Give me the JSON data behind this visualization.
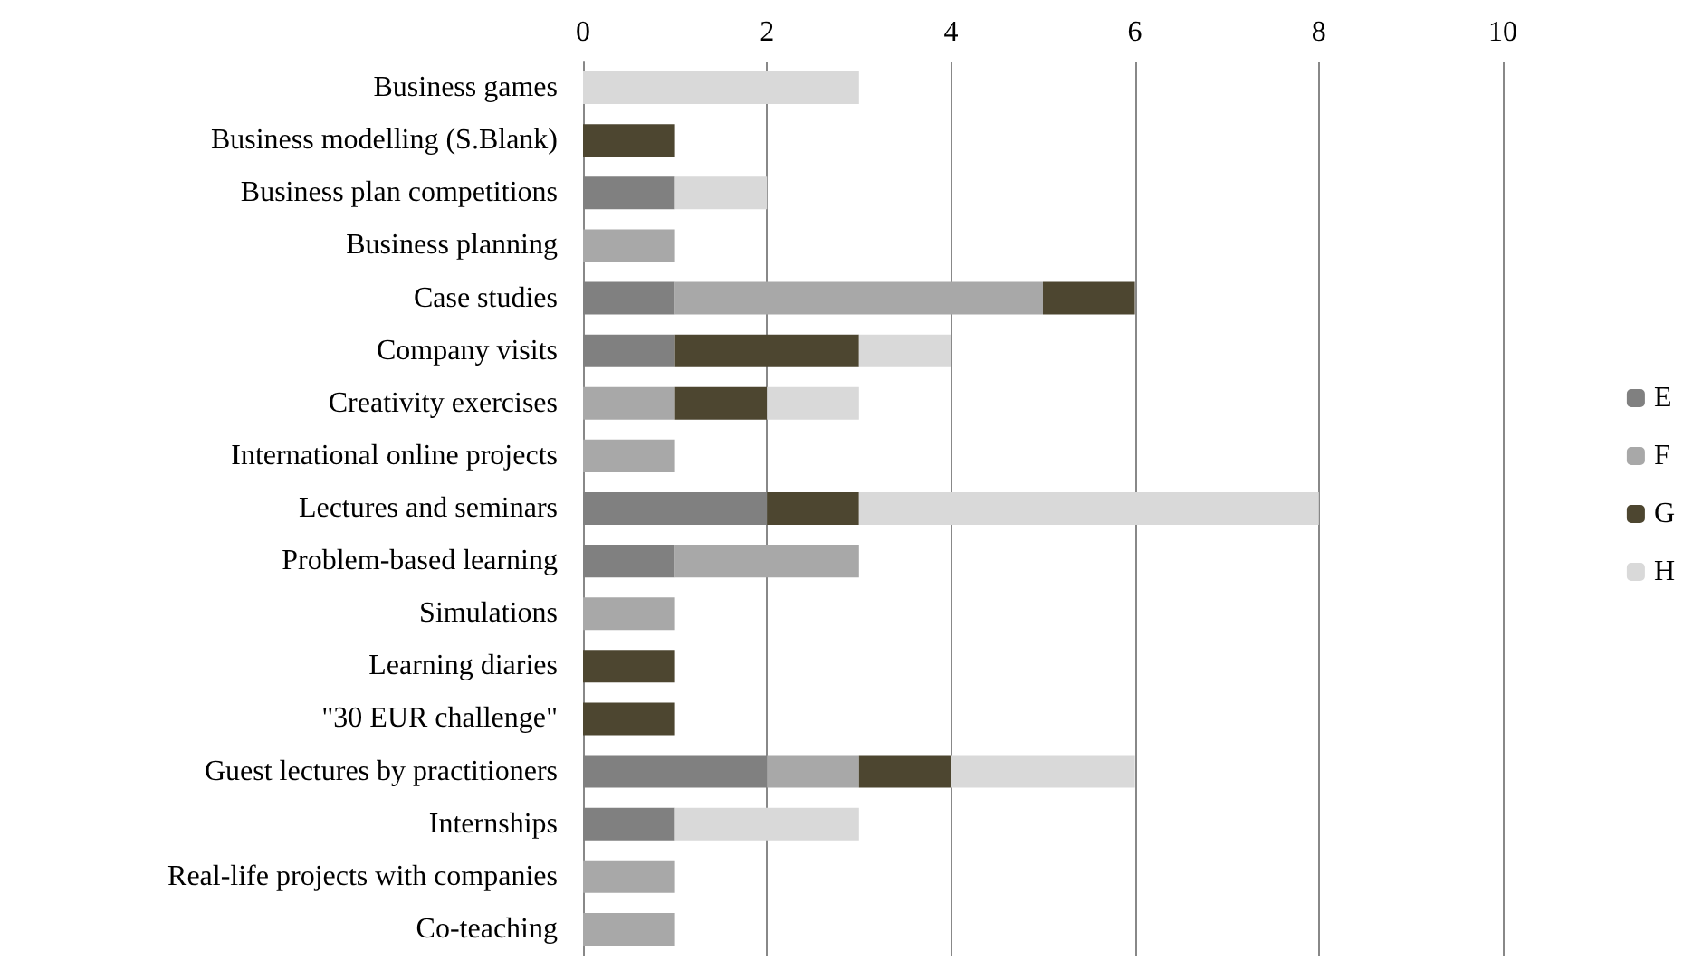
{
  "chart_data": {
    "type": "bar",
    "orientation": "horizontal",
    "stacked": true,
    "categories": [
      "Business games",
      "Business modelling (S.Blank)",
      "Business plan competitions",
      "Business planning",
      "Case studies",
      "Company visits",
      "Creativity exercises",
      "International online projects",
      "Lectures and seminars",
      "Problem-based learning",
      "Simulations",
      "Learning diaries",
      "\"30 EUR challenge\"",
      "Guest lectures by practitioners",
      "Internships",
      "Real-life projects with companies",
      "Co-teaching"
    ],
    "series": [
      {
        "name": "E",
        "color": "#808080",
        "values": [
          null,
          null,
          1,
          null,
          1,
          1,
          null,
          null,
          2,
          1,
          null,
          null,
          null,
          2,
          1,
          null,
          null
        ]
      },
      {
        "name": "F",
        "color": "#a8a8a8",
        "values": [
          null,
          null,
          null,
          1,
          4,
          null,
          1,
          1,
          null,
          2,
          1,
          null,
          null,
          1,
          null,
          1,
          1
        ]
      },
      {
        "name": "G",
        "color": "#4d4630",
        "values": [
          null,
          1,
          null,
          null,
          1,
          2,
          1,
          null,
          1,
          null,
          null,
          1,
          1,
          1,
          null,
          null,
          null
        ]
      },
      {
        "name": "H",
        "color": "#d9d9d9",
        "values": [
          3,
          null,
          1,
          null,
          null,
          1,
          1,
          null,
          5,
          null,
          null,
          null,
          null,
          2,
          2,
          null,
          null
        ]
      }
    ],
    "xlim": [
      0,
      10
    ],
    "xticks": [
      0,
      2,
      4,
      6,
      8,
      10
    ],
    "grid": "x",
    "legend": "right"
  }
}
